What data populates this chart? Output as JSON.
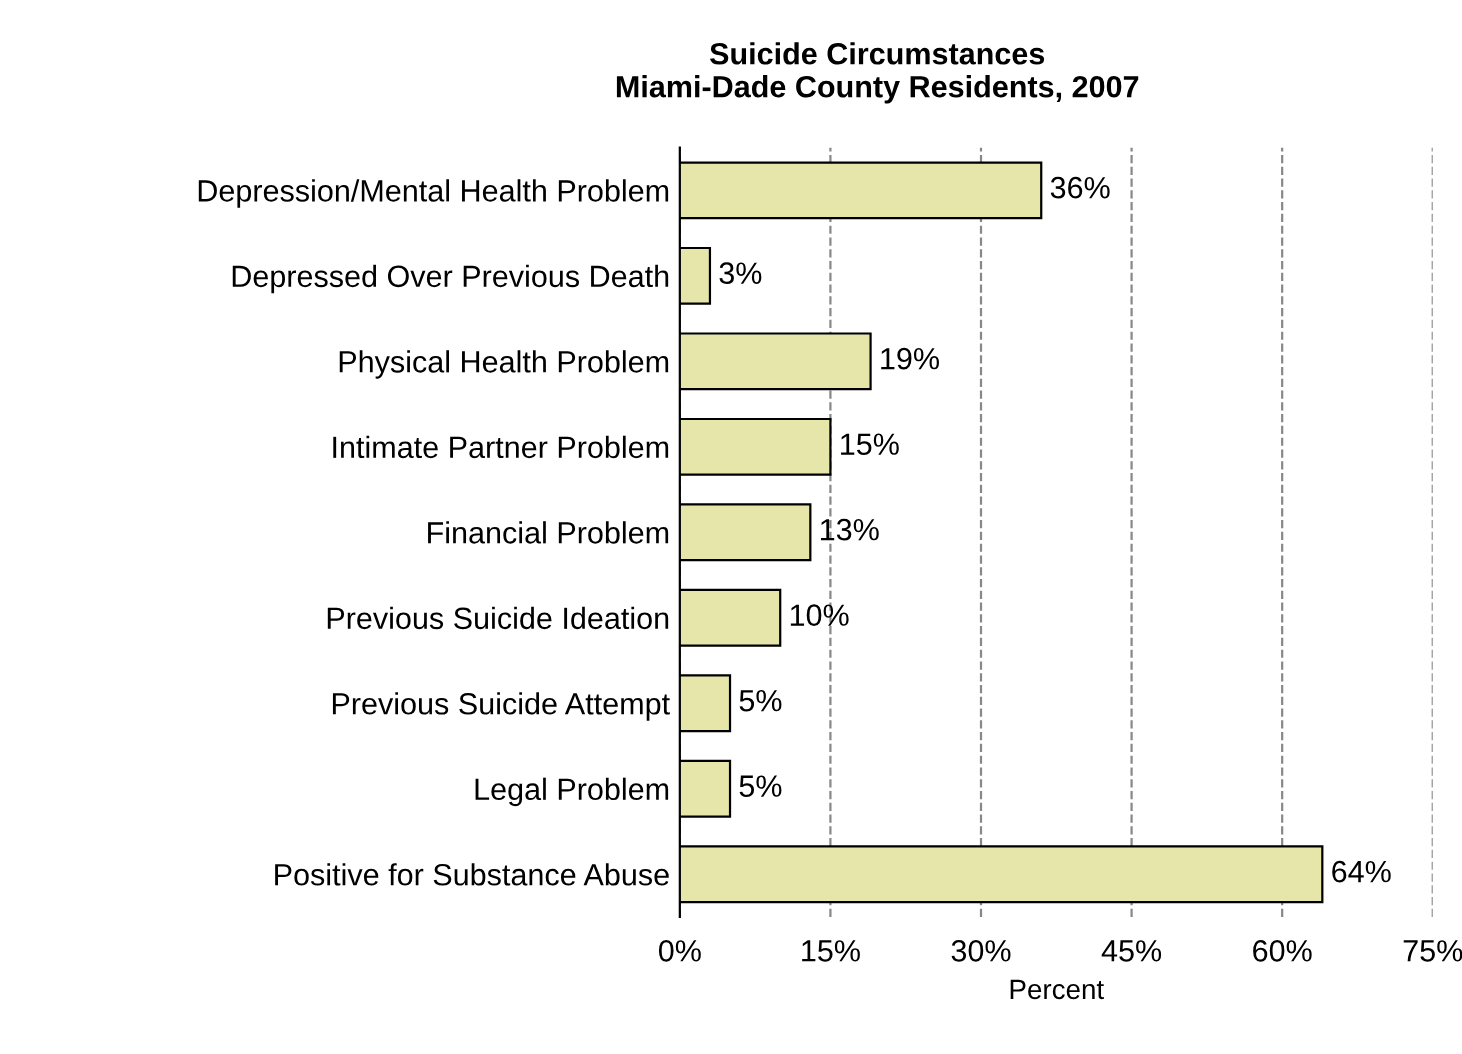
{
  "chart_data": {
    "type": "bar",
    "orientation": "horizontal",
    "title": "Suicide Circumstances\nMiami-Dade County Residents, 2007",
    "xlabel": "Percent",
    "categories": [
      "Depression/Mental Health Problem",
      "Depressed Over Previous Death",
      "Physical Health Problem",
      "Intimate Partner Problem",
      "Financial Problem",
      "Previous Suicide Ideation",
      "Previous Suicide Attempt",
      "Legal Problem",
      "Positive for Substance Abuse"
    ],
    "values": [
      36,
      3,
      19,
      15,
      13,
      10,
      5,
      5,
      64
    ],
    "value_labels": [
      "36%",
      "3%",
      "19%",
      "15%",
      "13%",
      "10%",
      "5%",
      "5%",
      "64%"
    ],
    "color": "#e6e6aa",
    "xlim": [
      0,
      75
    ],
    "xticks": [
      {
        "value": 0,
        "label": "0%"
      },
      {
        "value": 15,
        "label": "15%"
      },
      {
        "value": 30,
        "label": "30%"
      },
      {
        "value": 45,
        "label": "45%"
      },
      {
        "value": 60,
        "label": "60%"
      },
      {
        "value": 75,
        "label": "75%"
      }
    ],
    "grid": "x",
    "line_style": "dashed"
  }
}
